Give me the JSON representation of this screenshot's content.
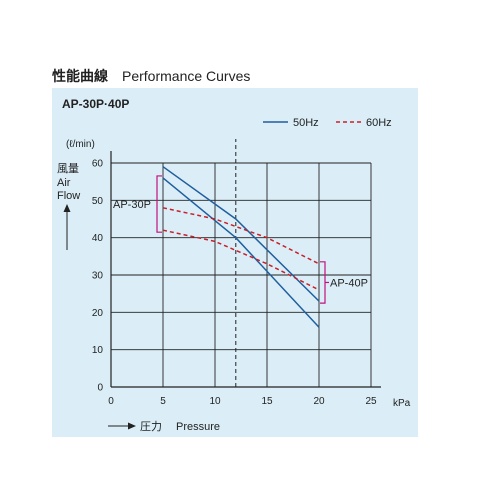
{
  "heading": {
    "jp": "性能曲線",
    "en": "Performance Curves"
  },
  "chart_data": {
    "type": "line",
    "title": "AP-30P·40P",
    "ylabel_unit": "(ℓ/min)",
    "ylabel_lines": [
      "風量",
      "Air",
      "Flow"
    ],
    "xlabel_jp": "圧力",
    "xlabel_en": "Pressure",
    "x_unit": "kPa",
    "xlim": [
      0,
      25
    ],
    "ylim": [
      0,
      60
    ],
    "xticks": [
      0,
      5,
      10,
      15,
      20,
      25
    ],
    "yticks": [
      0,
      10,
      20,
      30,
      40,
      50,
      60
    ],
    "grid": true,
    "reference_x": 12,
    "legend_position": "top-right",
    "legend": [
      {
        "label": "50Hz",
        "style": "solid",
        "color": "#1f5f9e"
      },
      {
        "label": "60Hz",
        "style": "dashed",
        "color": "#c8202a"
      }
    ],
    "series": [
      {
        "model": "AP-40P",
        "freq": "50Hz",
        "x": [
          5,
          12,
          20
        ],
        "y": [
          59,
          45,
          23
        ]
      },
      {
        "model": "AP-30P",
        "freq": "50Hz",
        "x": [
          5,
          12,
          20
        ],
        "y": [
          56,
          40,
          16
        ]
      },
      {
        "model": "AP-40P",
        "freq": "60Hz",
        "x": [
          5,
          10,
          15,
          20
        ],
        "y": [
          48,
          45,
          40,
          33
        ]
      },
      {
        "model": "AP-30P",
        "freq": "60Hz",
        "x": [
          5,
          10,
          15,
          20
        ],
        "y": [
          42,
          39,
          33,
          26
        ]
      }
    ],
    "annotations": [
      {
        "label": "AP-30P",
        "side": "left",
        "x": 5,
        "y_range": [
          42,
          56
        ]
      },
      {
        "label": "AP-40P",
        "side": "right",
        "x": 20,
        "y_range": [
          23,
          33
        ]
      }
    ]
  }
}
